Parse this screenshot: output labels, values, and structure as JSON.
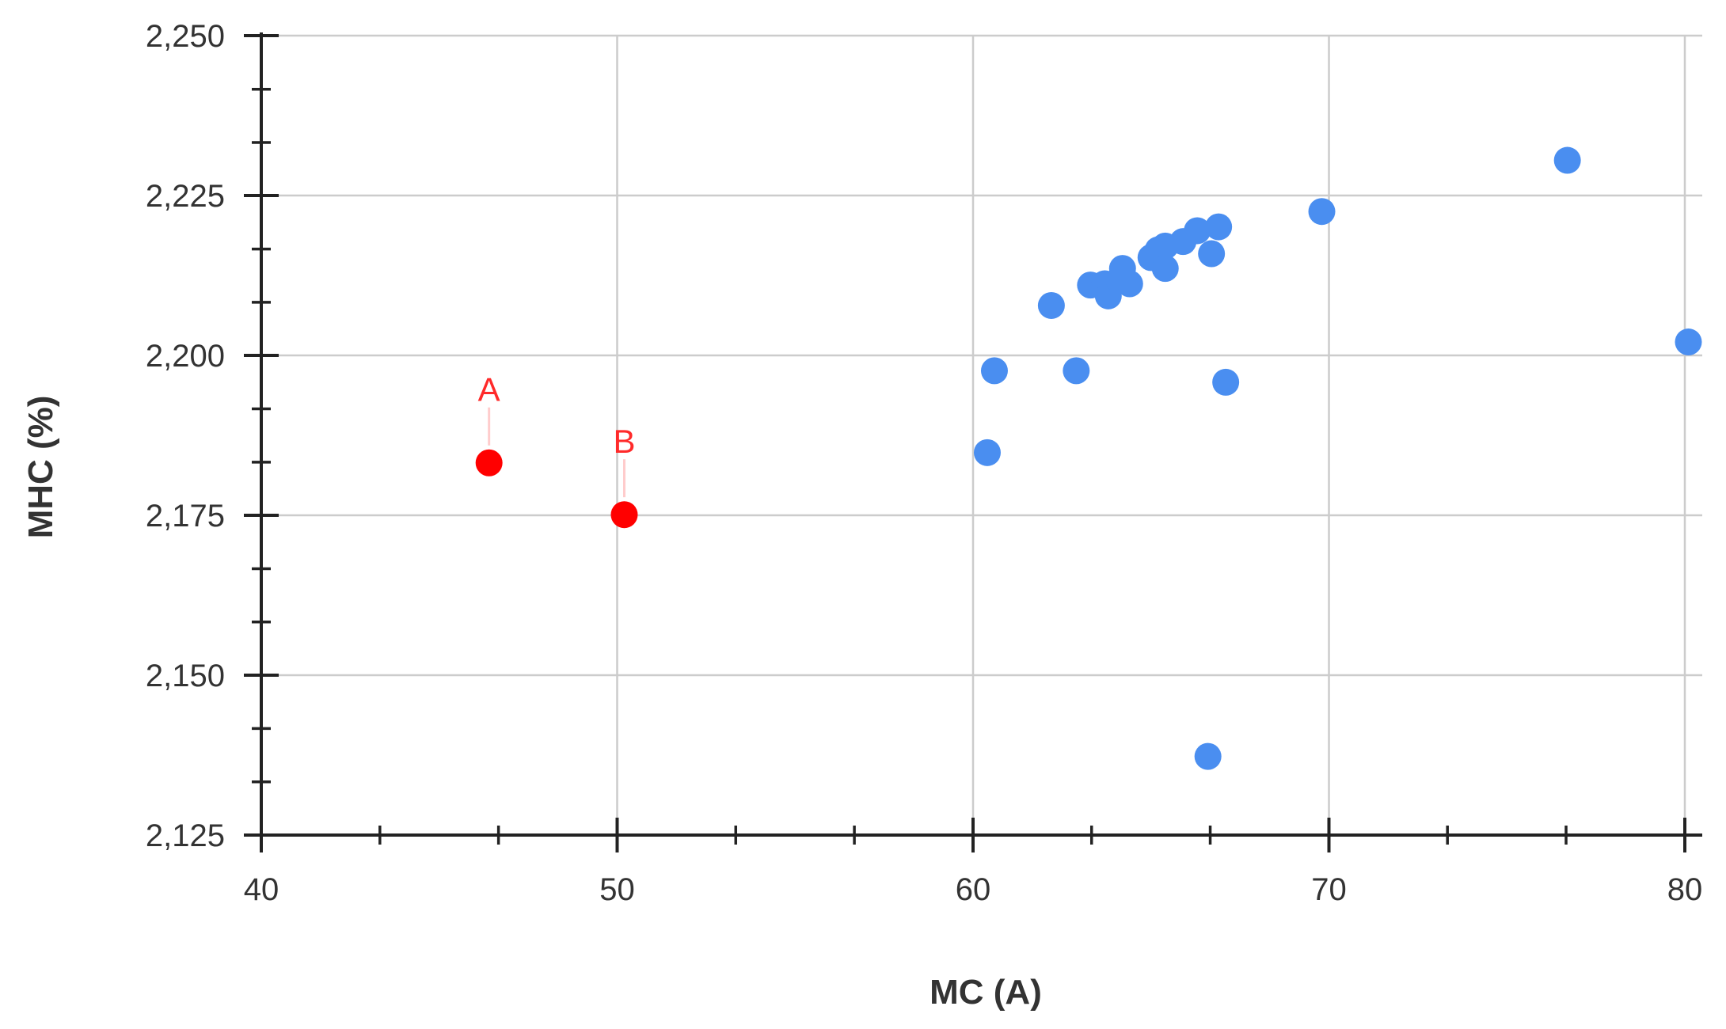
{
  "chart_data": {
    "type": "scatter",
    "xlabel": "MC (A)",
    "ylabel": "MHC (%)",
    "xlim": [
      40,
      80
    ],
    "ylim": [
      2.125,
      2.25
    ],
    "x_ticks": [
      40,
      50,
      60,
      70,
      80
    ],
    "x_tick_labels": [
      "40",
      "50",
      "60",
      "70",
      "80"
    ],
    "y_ticks": [
      2.125,
      2.15,
      2.175,
      2.2,
      2.225,
      2.25
    ],
    "y_tick_labels": [
      "2,125",
      "2,150",
      "2,175",
      "2,200",
      "2,225",
      "2,250"
    ],
    "x_minor_step": 3.333,
    "y_minor_step": 0.00833,
    "grid": true,
    "colors": {
      "main": "#4a8ef0",
      "highlight": "#ff0000",
      "label_line": "#ffcccc"
    },
    "highlighted": [
      {
        "label": "A",
        "x": 46.4,
        "y": 2.1832
      },
      {
        "label": "B",
        "x": 50.2,
        "y": 2.1751
      }
    ],
    "points": [
      {
        "x": 60.4,
        "y": 2.1848
      },
      {
        "x": 60.6,
        "y": 2.1976
      },
      {
        "x": 62.2,
        "y": 2.2078
      },
      {
        "x": 62.9,
        "y": 2.1976
      },
      {
        "x": 63.3,
        "y": 2.211
      },
      {
        "x": 63.7,
        "y": 2.2112
      },
      {
        "x": 63.8,
        "y": 2.2093
      },
      {
        "x": 64.1,
        "y": 2.2118
      },
      {
        "x": 64.2,
        "y": 2.2136
      },
      {
        "x": 64.4,
        "y": 2.2112
      },
      {
        "x": 65.0,
        "y": 2.2153
      },
      {
        "x": 65.2,
        "y": 2.2165
      },
      {
        "x": 65.4,
        "y": 2.2171
      },
      {
        "x": 65.4,
        "y": 2.2136
      },
      {
        "x": 65.9,
        "y": 2.2178
      },
      {
        "x": 66.3,
        "y": 2.2195
      },
      {
        "x": 66.6,
        "y": 2.1373
      },
      {
        "x": 66.7,
        "y": 2.2159
      },
      {
        "x": 66.9,
        "y": 2.2201
      },
      {
        "x": 67.1,
        "y": 2.1958
      },
      {
        "x": 69.8,
        "y": 2.2225
      },
      {
        "x": 76.7,
        "y": 2.2305
      },
      {
        "x": 80.1,
        "y": 2.2021
      }
    ]
  }
}
